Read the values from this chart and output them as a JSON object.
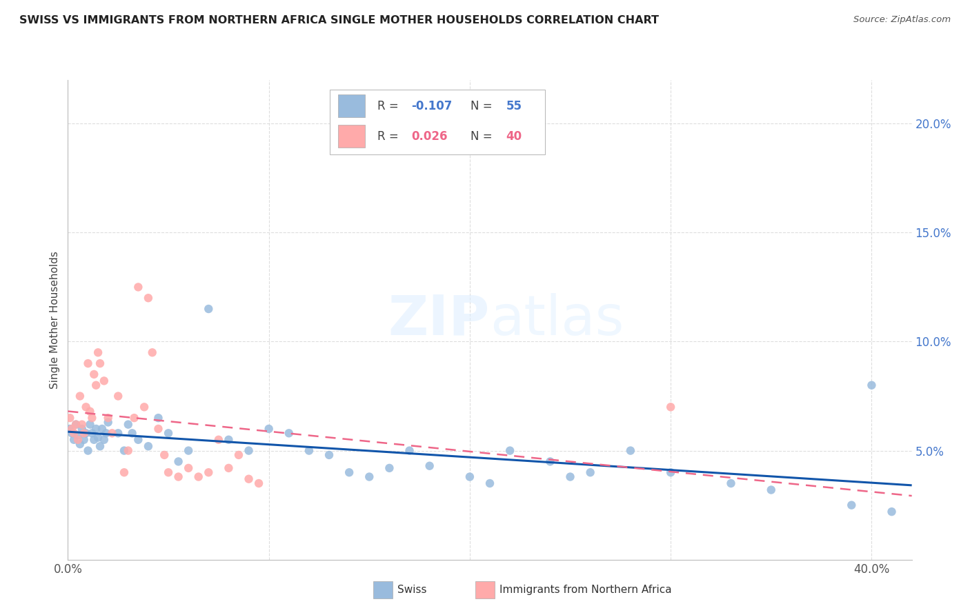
{
  "title": "SWISS VS IMMIGRANTS FROM NORTHERN AFRICA SINGLE MOTHER HOUSEHOLDS CORRELATION CHART",
  "source": "Source: ZipAtlas.com",
  "ylabel": "Single Mother Households",
  "swiss_color": "#99BBDD",
  "imm_color": "#FFAAAA",
  "swiss_line_color": "#1155AA",
  "imm_line_color": "#EE6688",
  "ytick_color": "#4477CC",
  "grid_color": "#DDDDDD",
  "watermark_color": "#DDEEFF",
  "xlim": [
    0.0,
    0.42
  ],
  "ylim": [
    0.0,
    0.22
  ],
  "xtick_values": [
    0.0,
    0.1,
    0.2,
    0.3,
    0.4
  ],
  "ytick_values": [
    0.05,
    0.1,
    0.15,
    0.2
  ],
  "swiss_x": [
    0.001,
    0.002,
    0.003,
    0.004,
    0.005,
    0.006,
    0.007,
    0.008,
    0.009,
    0.01,
    0.011,
    0.012,
    0.013,
    0.014,
    0.015,
    0.016,
    0.017,
    0.018,
    0.019,
    0.02,
    0.025,
    0.028,
    0.03,
    0.032,
    0.035,
    0.04,
    0.045,
    0.05,
    0.055,
    0.06,
    0.07,
    0.08,
    0.09,
    0.1,
    0.11,
    0.12,
    0.13,
    0.14,
    0.15,
    0.16,
    0.17,
    0.18,
    0.2,
    0.21,
    0.22,
    0.24,
    0.25,
    0.26,
    0.28,
    0.3,
    0.33,
    0.35,
    0.39,
    0.4,
    0.41
  ],
  "swiss_y": [
    0.06,
    0.058,
    0.055,
    0.062,
    0.057,
    0.053,
    0.06,
    0.055,
    0.058,
    0.05,
    0.062,
    0.058,
    0.055,
    0.06,
    0.056,
    0.052,
    0.06,
    0.055,
    0.058,
    0.063,
    0.058,
    0.05,
    0.062,
    0.058,
    0.055,
    0.052,
    0.065,
    0.058,
    0.045,
    0.05,
    0.115,
    0.055,
    0.05,
    0.06,
    0.058,
    0.05,
    0.048,
    0.04,
    0.038,
    0.042,
    0.05,
    0.043,
    0.038,
    0.035,
    0.05,
    0.045,
    0.038,
    0.04,
    0.05,
    0.04,
    0.035,
    0.032,
    0.025,
    0.08,
    0.022
  ],
  "imm_x": [
    0.001,
    0.002,
    0.003,
    0.004,
    0.005,
    0.006,
    0.007,
    0.008,
    0.009,
    0.01,
    0.011,
    0.012,
    0.013,
    0.014,
    0.015,
    0.016,
    0.018,
    0.02,
    0.022,
    0.025,
    0.028,
    0.03,
    0.033,
    0.035,
    0.038,
    0.04,
    0.042,
    0.045,
    0.048,
    0.05,
    0.055,
    0.06,
    0.065,
    0.07,
    0.075,
    0.08,
    0.085,
    0.09,
    0.095,
    0.3
  ],
  "imm_y": [
    0.065,
    0.06,
    0.058,
    0.062,
    0.055,
    0.075,
    0.062,
    0.058,
    0.07,
    0.09,
    0.068,
    0.065,
    0.085,
    0.08,
    0.095,
    0.09,
    0.082,
    0.065,
    0.058,
    0.075,
    0.04,
    0.05,
    0.065,
    0.125,
    0.07,
    0.12,
    0.095,
    0.06,
    0.048,
    0.04,
    0.038,
    0.042,
    0.038,
    0.04,
    0.055,
    0.042,
    0.048,
    0.037,
    0.035,
    0.07
  ],
  "legend_R_swiss_label": "R = ",
  "legend_R_swiss_val": "-0.107",
  "legend_N_swiss_label": "N = ",
  "legend_N_swiss_val": "55",
  "legend_R_imm_label": "R =  ",
  "legend_R_imm_val": "0.026",
  "legend_N_imm_label": "N = ",
  "legend_N_imm_val": "40",
  "legend_swiss_label": "Swiss",
  "legend_imm_label": "Immigrants from Northern Africa"
}
